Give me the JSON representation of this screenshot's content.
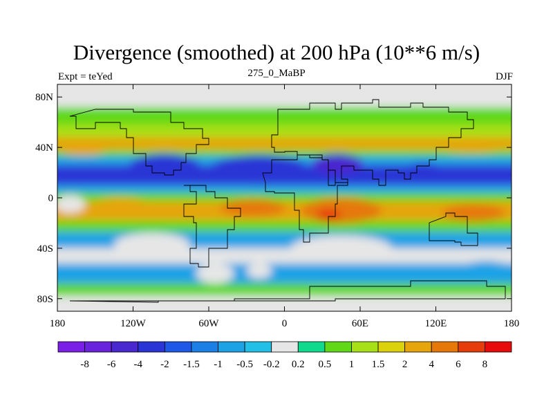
{
  "chart_data": {
    "type": "heatmap",
    "title": "Divergence (smoothed) at 200 hPa (10**6 m/s)",
    "subtitle_left": "Expt = teYed",
    "subtitle_center": "275_0_MaBP",
    "subtitle_right": "DJF",
    "xlim": [
      -180,
      180
    ],
    "ylim": [
      -90,
      90
    ],
    "x_ticks": [
      {
        "value": -180,
        "label": "180"
      },
      {
        "value": -120,
        "label": "120W"
      },
      {
        "value": -60,
        "label": "60W"
      },
      {
        "value": 0,
        "label": "0"
      },
      {
        "value": 60,
        "label": "60E"
      },
      {
        "value": 120,
        "label": "120E"
      },
      {
        "value": 180,
        "label": "180"
      }
    ],
    "y_ticks": [
      {
        "value": 80,
        "label": "80N"
      },
      {
        "value": 40,
        "label": "40N"
      },
      {
        "value": 0,
        "label": "0"
      },
      {
        "value": -40,
        "label": "40S"
      },
      {
        "value": -80,
        "label": "80S"
      }
    ],
    "colorbar": {
      "colors": [
        "#7a1fe6",
        "#6a23dc",
        "#4a28cf",
        "#2a35d6",
        "#1e58e6",
        "#1c7fe6",
        "#1ea2e6",
        "#22c0e6",
        "#e6e6e6",
        "#10d88c",
        "#60d818",
        "#a8e018",
        "#dcd20c",
        "#e6a50a",
        "#e6780a",
        "#e63c0c",
        "#e60c0c"
      ],
      "labels": [
        "-8",
        "-6",
        "-4",
        "-2",
        "-1.5",
        "-1",
        "-0.5",
        "-0.2",
        "0.2",
        "0.5",
        "1",
        "1.5",
        "2",
        "4",
        "6",
        "8"
      ]
    },
    "bands": [
      {
        "lat_top": 90,
        "lat_bottom": 72,
        "value": 0
      },
      {
        "lat_top": 72,
        "lat_bottom": 58,
        "value": 0.6
      },
      {
        "lat_top": 58,
        "lat_bottom": 48,
        "value": 1.2
      },
      {
        "lat_top": 48,
        "lat_bottom": 38,
        "value": 2.5
      },
      {
        "lat_top": 38,
        "lat_bottom": 33,
        "value": 0.5
      },
      {
        "lat_top": 33,
        "lat_bottom": 26,
        "value": -0.8
      },
      {
        "lat_top": 26,
        "lat_bottom": 10,
        "value": -2.5
      },
      {
        "lat_top": 10,
        "lat_bottom": 4,
        "value": -0.7
      },
      {
        "lat_top": 4,
        "lat_bottom": -3,
        "value": 0.8
      },
      {
        "lat_top": -3,
        "lat_bottom": -18,
        "value": 3.2
      },
      {
        "lat_top": -18,
        "lat_bottom": -27,
        "value": 0.8
      },
      {
        "lat_top": -27,
        "lat_bottom": -40,
        "value": -0.6
      },
      {
        "lat_top": -40,
        "lat_bottom": -52,
        "value": 0
      },
      {
        "lat_top": -52,
        "lat_bottom": -68,
        "value": -0.6
      },
      {
        "lat_top": -68,
        "lat_bottom": -78,
        "value": 0.6
      },
      {
        "lat_top": -78,
        "lat_bottom": -90,
        "value": 0
      }
    ],
    "blobs": [
      {
        "lon": -95,
        "lat": 25,
        "rx": 28,
        "ry": 10,
        "value": -4
      },
      {
        "lon": -20,
        "lat": 22,
        "rx": 40,
        "ry": 12,
        "value": -4
      },
      {
        "lon": 42,
        "lat": 27,
        "rx": 20,
        "ry": 8,
        "value": -4.5
      },
      {
        "lon": 110,
        "lat": 20,
        "rx": 18,
        "ry": 8,
        "value": -4
      },
      {
        "lon": 45,
        "lat": -10,
        "rx": 32,
        "ry": 10,
        "value": 4
      },
      {
        "lon": 35,
        "lat": -14,
        "rx": 10,
        "ry": 5,
        "value": 7
      },
      {
        "lon": -25,
        "lat": -8,
        "rx": 26,
        "ry": 7,
        "value": 4
      },
      {
        "lon": 150,
        "lat": -12,
        "rx": 25,
        "ry": 7,
        "value": 4
      },
      {
        "lon": 148,
        "lat": 42,
        "rx": 30,
        "ry": 6,
        "value": 3
      },
      {
        "lon": -160,
        "lat": 40,
        "rx": 20,
        "ry": 6,
        "value": 2.5
      },
      {
        "lon": -130,
        "lat": -8,
        "rx": 25,
        "ry": 8,
        "value": 2.5
      },
      {
        "lon": -170,
        "lat": -5,
        "rx": 12,
        "ry": 7,
        "value": 0
      },
      {
        "lon": -105,
        "lat": -37,
        "rx": 30,
        "ry": 9,
        "value": 0
      },
      {
        "lon": 45,
        "lat": -40,
        "rx": 40,
        "ry": 10,
        "value": 0
      },
      {
        "lon": -55,
        "lat": -60,
        "rx": 15,
        "ry": 8,
        "value": 0
      },
      {
        "lon": -20,
        "lat": -58,
        "rx": 10,
        "ry": 6,
        "value": 0
      },
      {
        "lon": 160,
        "lat": -58,
        "rx": 22,
        "ry": 8,
        "value": -0.8
      }
    ]
  }
}
